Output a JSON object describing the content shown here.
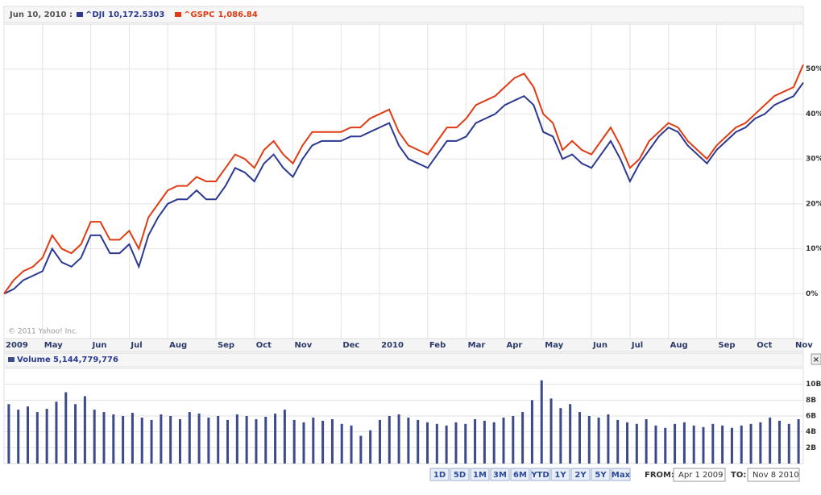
{
  "header_date": "Jun 10, 2010 :",
  "copyright": "© 2011 Yahoo! Inc.",
  "close_button": "×",
  "range_buttons": [
    "1D",
    "5D",
    "1M",
    "3M",
    "6M",
    "YTD",
    "1Y",
    "2Y",
    "5Y",
    "Max"
  ],
  "from_label": "FROM:",
  "from_value": "Apr 1 2009",
  "to_label": "TO:",
  "to_value": "Nov 8 2010",
  "chart_data": [
    {
      "type": "line",
      "categories": [
        "2009",
        null,
        null,
        null,
        "May",
        null,
        null,
        null,
        null,
        "Jun",
        null,
        null,
        null,
        "Jul",
        null,
        null,
        null,
        "Aug",
        null,
        null,
        null,
        null,
        "Sep",
        null,
        null,
        null,
        "Oct",
        null,
        null,
        null,
        "Nov",
        null,
        null,
        null,
        null,
        "Dec",
        null,
        null,
        null,
        "2010",
        null,
        null,
        null,
        null,
        "Feb",
        null,
        null,
        null,
        "Mar",
        null,
        null,
        null,
        "Apr",
        null,
        null,
        null,
        "May",
        null,
        null,
        null,
        null,
        "Jun",
        null,
        null,
        null,
        "Jul",
        null,
        null,
        null,
        "Aug",
        null,
        null,
        null,
        null,
        "Sep",
        null,
        null,
        null,
        "Oct",
        null,
        null,
        null,
        "Nov",
        null
      ],
      "series": [
        {
          "name": "^DJI",
          "legend_value": "10,172.5303",
          "color": "#2b3990",
          "values": [
            0,
            1,
            3,
            4,
            5,
            10,
            7,
            6,
            8,
            13,
            13,
            9,
            9,
            11,
            6,
            13,
            17,
            20,
            21,
            21,
            23,
            21,
            21,
            24,
            28,
            27,
            25,
            29,
            31,
            28,
            26,
            30,
            33,
            34,
            34,
            34,
            35,
            35,
            36,
            37,
            38,
            33,
            30,
            29,
            28,
            31,
            34,
            34,
            35,
            38,
            39,
            40,
            42,
            43,
            44,
            42,
            36,
            35,
            30,
            31,
            29,
            28,
            31,
            34,
            30,
            25,
            29,
            32,
            35,
            37,
            36,
            33,
            31,
            29,
            32,
            34,
            36,
            37,
            39,
            40,
            42,
            43,
            44,
            47
          ]
        },
        {
          "name": "^GSPC",
          "legend_value": "1,086.84",
          "color": "#e03c14",
          "values": [
            0,
            3,
            5,
            6,
            8,
            13,
            10,
            9,
            11,
            16,
            16,
            12,
            12,
            14,
            10,
            17,
            20,
            23,
            24,
            24,
            26,
            25,
            25,
            28,
            31,
            30,
            28,
            32,
            34,
            31,
            29,
            33,
            36,
            36,
            36,
            36,
            37,
            37,
            39,
            40,
            41,
            36,
            33,
            32,
            31,
            34,
            37,
            37,
            39,
            42,
            43,
            44,
            46,
            48,
            49,
            46,
            40,
            38,
            32,
            34,
            32,
            31,
            34,
            37,
            33,
            28,
            30,
            34,
            36,
            38,
            37,
            34,
            32,
            30,
            33,
            35,
            37,
            38,
            40,
            42,
            44,
            45,
            46,
            51
          ]
        }
      ],
      "ylim": [
        -10,
        60
      ],
      "yticks": [
        {
          "value": 0,
          "label": "0%"
        },
        {
          "value": 10,
          "label": "10%"
        },
        {
          "value": 20,
          "label": "20%"
        },
        {
          "value": 30,
          "label": "30%"
        },
        {
          "value": 40,
          "label": "40%"
        },
        {
          "value": 50,
          "label": "50%"
        }
      ],
      "grid": true
    },
    {
      "type": "bar",
      "title": "Volume",
      "legend_value": "5,144,779,776",
      "color": "#3c4a8a",
      "values": [
        7.5,
        6.8,
        7.2,
        6.5,
        6.9,
        7.8,
        9.0,
        7.5,
        8.5,
        6.8,
        6.5,
        6.2,
        6.0,
        6.4,
        5.8,
        5.5,
        6.2,
        6.0,
        5.6,
        6.5,
        6.3,
        5.8,
        6.0,
        5.5,
        6.2,
        6.0,
        5.6,
        5.9,
        6.3,
        6.8,
        5.5,
        5.2,
        5.8,
        5.4,
        5.6,
        5.0,
        4.8,
        3.5,
        4.2,
        5.5,
        6.0,
        6.2,
        5.8,
        5.5,
        5.2,
        5.0,
        4.8,
        5.2,
        5.0,
        5.6,
        5.4,
        5.2,
        5.8,
        6.0,
        6.5,
        8.0,
        10.5,
        8.2,
        7.0,
        7.5,
        6.5,
        6.0,
        5.8,
        6.2,
        5.5,
        5.2,
        5.0,
        5.6,
        4.8,
        4.5,
        5.0,
        5.2,
        4.8,
        4.6,
        5.0,
        4.8,
        4.5,
        4.8,
        5.0,
        5.2,
        5.8,
        5.4,
        5.0,
        5.6
      ],
      "ylim": [
        0,
        12
      ],
      "yticks": [
        {
          "value": 2,
          "label": "2B"
        },
        {
          "value": 4,
          "label": "4B"
        },
        {
          "value": 6,
          "label": "6B"
        },
        {
          "value": 8,
          "label": "8B"
        },
        {
          "value": 10,
          "label": "10B"
        }
      ],
      "grid": true
    }
  ]
}
